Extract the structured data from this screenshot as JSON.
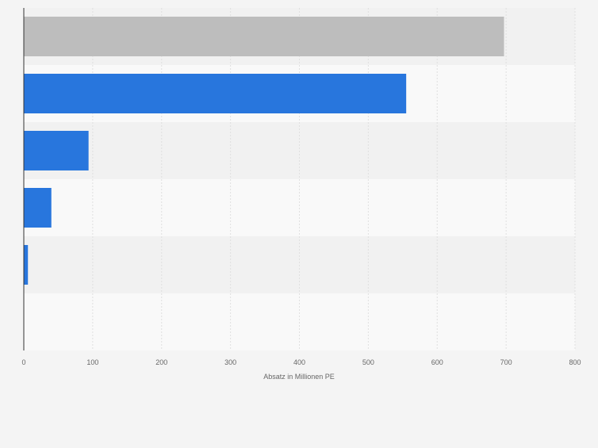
{
  "chart_data": {
    "type": "bar",
    "orientation": "horizontal",
    "title": "",
    "xlabel": "Absatz in Millionen PE",
    "ylabel": "",
    "categories": [
      "",
      "",
      "",
      "",
      ""
    ],
    "values": [
      697,
      555,
      94,
      40,
      6
    ],
    "bar_colors": [
      "#bdbdbd",
      "#2876dd",
      "#2876dd",
      "#2876dd",
      "#2876dd"
    ],
    "xlim": [
      0,
      800
    ],
    "xticks": [
      0,
      100,
      200,
      300,
      400,
      500,
      600,
      700,
      800
    ],
    "grid": true
  },
  "colors": {
    "background": "#f4f4f4",
    "band_dark": "#f1f1f1",
    "band_light": "#f9f9f9",
    "grid": "#e0e0e0",
    "axis": "#333333",
    "tick_text": "#666666"
  }
}
